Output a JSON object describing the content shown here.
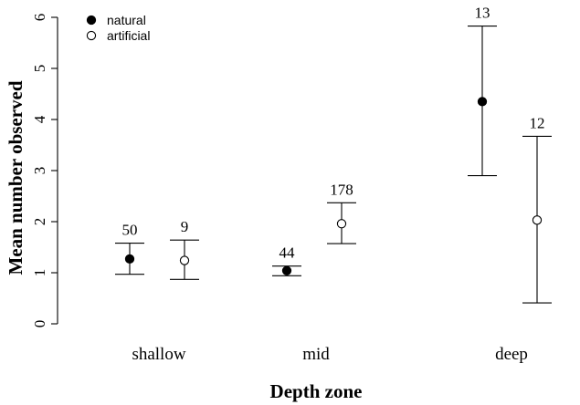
{
  "chart_data": {
    "type": "scatter",
    "xlabel": "Depth zone",
    "ylabel": "Mean number observed",
    "categories": [
      "shallow",
      "mid",
      "deep"
    ],
    "ylim": [
      0,
      6
    ],
    "yticks": [
      "0",
      "1",
      "2",
      "3",
      "4",
      "5",
      "6"
    ],
    "grid": false,
    "legend_position": "top-left",
    "series": [
      {
        "name": "natural",
        "marker": "filled-circle",
        "color": "#000000",
        "points": [
          {
            "category": "shallow",
            "mean": 1.27,
            "lower": 0.97,
            "upper": 1.58,
            "n": "50"
          },
          {
            "category": "mid",
            "mean": 1.04,
            "lower": 0.94,
            "upper": 1.13,
            "n": "44"
          },
          {
            "category": "deep",
            "mean": 4.35,
            "lower": 2.9,
            "upper": 5.83,
            "n": "13"
          }
        ]
      },
      {
        "name": "artificial",
        "marker": "open-circle",
        "color": "#000000",
        "points": [
          {
            "category": "shallow",
            "mean": 1.24,
            "lower": 0.87,
            "upper": 1.64,
            "n": "9"
          },
          {
            "category": "mid",
            "mean": 1.96,
            "lower": 1.57,
            "upper": 2.37,
            "n": "178"
          },
          {
            "category": "deep",
            "mean": 2.03,
            "lower": 0.41,
            "upper": 3.67,
            "n": "12"
          }
        ]
      }
    ]
  }
}
